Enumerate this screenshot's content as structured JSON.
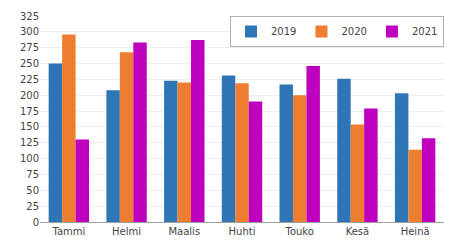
{
  "chart_data": {
    "type": "bar",
    "categories": [
      "Tammi",
      "Helmi",
      "Maalis",
      "Huhti",
      "Touko",
      "Kesä",
      "Heinä"
    ],
    "series": [
      {
        "name": "2019",
        "color": "#2E75B6",
        "values": [
          250,
          208,
          223,
          231,
          217,
          226,
          203
        ]
      },
      {
        "name": "2020",
        "color": "#ED7D31",
        "values": [
          296,
          268,
          220,
          219,
          200,
          154,
          114
        ]
      },
      {
        "name": "2021",
        "color": "#BE00BE",
        "values": [
          130,
          283,
          287,
          190,
          246,
          179,
          132
        ]
      }
    ],
    "ylim": [
      0,
      325
    ],
    "yticks": [
      0,
      25,
      50,
      75,
      100,
      125,
      150,
      175,
      200,
      225,
      250,
      275,
      300,
      325
    ],
    "grid": true,
    "legend": "upper right"
  }
}
